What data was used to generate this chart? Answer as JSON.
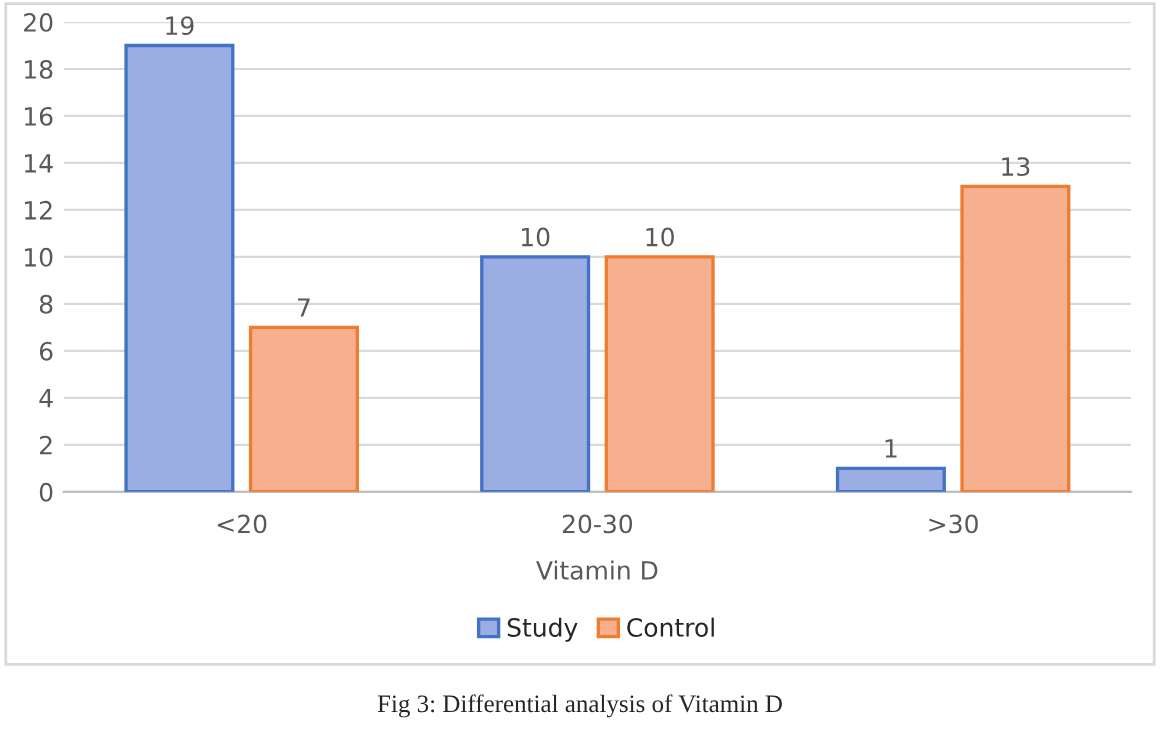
{
  "chart_data": {
    "type": "bar",
    "title": "Fig 3: Differential analysis of Vitamin D",
    "xlabel": "Vitamin D",
    "categories": [
      "<20",
      "20-30",
      ">30"
    ],
    "series": [
      {
        "name": "Study",
        "color": "#9aaee3",
        "values": [
          19,
          10,
          1
        ]
      },
      {
        "name": "Control",
        "color": "#f6b08f",
        "values": [
          7,
          10,
          13
        ]
      }
    ],
    "ylim": [
      0,
      20
    ],
    "yticks": [
      0,
      2,
      4,
      6,
      8,
      10,
      12,
      14,
      16,
      18,
      20
    ],
    "grid": "y",
    "legend": "bottom",
    "data_labels": true
  }
}
